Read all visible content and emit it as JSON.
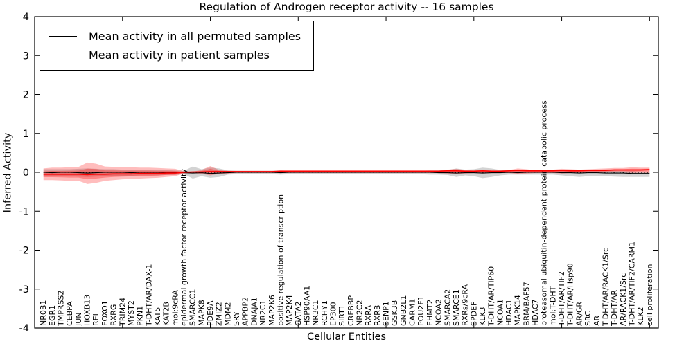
{
  "chart_data": {
    "type": "line",
    "title": "Regulation of Androgen receptor activity -- 16 samples",
    "xlabel": "Cellular Entities",
    "ylabel": "Inferred Activity",
    "ylim": [
      -4,
      4
    ],
    "yticks": [
      4,
      3,
      2,
      1,
      0,
      -1,
      -2,
      -3,
      -4
    ],
    "xtick_values": [
      10,
      20,
      30,
      40,
      50,
      60,
      70
    ],
    "grid": false,
    "legend_position": "upper left",
    "zero_line": {
      "style": "dotted",
      "color": "#000000",
      "y": 0
    },
    "legend": {
      "entries": [
        {
          "label": "Mean activity in all permuted samples",
          "color": "#000000"
        },
        {
          "label": "Mean activity in patient samples",
          "color": "#ff0000"
        }
      ]
    },
    "categories": [
      "NR0B1",
      "EGR1",
      "TMPRSS2",
      "CEBPA",
      "JUN",
      "HOXB13",
      "REL",
      "FOXO1",
      "RXRG",
      "TRIM24",
      "MYST2",
      "PKN1",
      "T-DHT/AR/DAX-1",
      "KAT5",
      "KAT2B",
      "mol:9cRA",
      "epidermal growth factor receptor activity",
      "SMARCC1",
      "MAPK8",
      "PDE9A",
      "ZMIZ2",
      "MDM2",
      "SRY",
      "APPBP2",
      "DNAJA1",
      "NR2C1",
      "MAP2K6",
      "positive regulation of transcription",
      "MAP2K4",
      "GATA2",
      "HSP90AA1",
      "NR3C1",
      "RCHY1",
      "EP300",
      "SIRT1",
      "CREBBP",
      "NR2C2",
      "RXRA",
      "RXRB",
      "SENP1",
      "GSK3B",
      "GNB2L1",
      "CARM1",
      "POU2F1",
      "EHMT2",
      "NCOA2",
      "SMARCA2",
      "SMARCE1",
      "RXRs/9cRA",
      "SPDEF",
      "KLK3",
      "T-DHT/AR/TIP60",
      "NCOA1",
      "HDAC1",
      "MAPK14",
      "BRM/BAF57",
      "HDAC7",
      "proteasomal ubiquitin-dependent protein catabolic process",
      "mol:T-DHT",
      "T-DHT/AR/TIF2",
      "T-DHT/AR/Hsp90",
      "AR/GR",
      "SRC",
      "AR",
      "T-DHT/AR/RACK1/Src",
      "T-DHT/AR",
      "AR/RACK1/Src",
      "T-DHT/AR/TIF2/CARM1",
      "KLK2",
      "cell proliferation"
    ],
    "series": [
      {
        "name": "Mean activity in all permuted samples",
        "color": "#000000",
        "style": "solid",
        "width": 1.1,
        "values": [
          0,
          -0.01,
          0,
          0,
          -0.01,
          -0.02,
          -0.01,
          0,
          0,
          0,
          -0.01,
          0,
          0,
          0,
          0,
          0,
          -0.01,
          -0.02,
          -0.01,
          -0.03,
          -0.02,
          -0.01,
          0,
          0,
          0,
          0,
          0,
          -0.01,
          0,
          0,
          0,
          0,
          0,
          0,
          0,
          0,
          0,
          0,
          0,
          0,
          0,
          0,
          0,
          0,
          0,
          -0.01,
          -0.01,
          -0.02,
          -0.01,
          -0.01,
          -0.02,
          -0.01,
          -0.01,
          0,
          -0.01,
          0,
          0,
          0,
          0,
          -0.01,
          -0.01,
          -0.02,
          -0.01,
          -0.01,
          -0.02,
          -0.02,
          -0.02,
          -0.03,
          -0.03,
          -0.03
        ]
      },
      {
        "name": "Mean activity in patient samples",
        "color": "#ff0000",
        "style": "solid",
        "width": 1.6,
        "values": [
          -0.05,
          -0.05,
          -0.05,
          -0.05,
          -0.05,
          -0.06,
          -0.05,
          -0.05,
          -0.04,
          -0.04,
          -0.04,
          -0.03,
          -0.03,
          -0.03,
          -0.02,
          -0.02,
          0,
          0.01,
          0.01,
          0.02,
          0.02,
          0.02,
          0.02,
          0.02,
          0.02,
          0.02,
          0.02,
          0.03,
          0.03,
          0.03,
          0.03,
          0.03,
          0.03,
          0.03,
          0.03,
          0.03,
          0.03,
          0.03,
          0.03,
          0.03,
          0.03,
          0.03,
          0.03,
          0.03,
          0.03,
          0.03,
          0.04,
          0.04,
          0.03,
          0.03,
          0.04,
          0.03,
          0.03,
          0.04,
          0.05,
          0.04,
          0.04,
          0.04,
          0.04,
          0.05,
          0.04,
          0.04,
          0.05,
          0.05,
          0.05,
          0.06,
          0.06,
          0.06,
          0.06,
          0.07
        ]
      }
    ],
    "bands": [
      {
        "name": "permuted samples range",
        "color": "#808080",
        "opacity": 0.35,
        "upper": [
          0.08,
          0.08,
          0.08,
          0.08,
          0.09,
          0.1,
          0.09,
          0.08,
          0.08,
          0.07,
          0.07,
          0.07,
          0.06,
          0.06,
          0.06,
          0.05,
          0.04,
          0.15,
          0.08,
          0.12,
          0.1,
          0.05,
          0.04,
          0.04,
          0.04,
          0.04,
          0.04,
          0.05,
          0.04,
          0.04,
          0.04,
          0.04,
          0.04,
          0.04,
          0.04,
          0.04,
          0.04,
          0.04,
          0.04,
          0.04,
          0.04,
          0.04,
          0.04,
          0.04,
          0.05,
          0.05,
          0.06,
          0.1,
          0.07,
          0.08,
          0.12,
          0.1,
          0.06,
          0.05,
          0.06,
          0.05,
          0.05,
          0.05,
          0.05,
          0.06,
          0.07,
          0.06,
          0.05,
          0.05,
          0.04,
          0.04,
          0.03,
          0.03,
          0.02,
          0.02
        ],
        "lower": [
          -0.1,
          -0.1,
          -0.1,
          -0.1,
          -0.11,
          -0.12,
          -0.11,
          -0.1,
          -0.1,
          -0.09,
          -0.09,
          -0.08,
          -0.08,
          -0.08,
          -0.07,
          -0.07,
          -0.05,
          -0.16,
          -0.1,
          -0.14,
          -0.12,
          -0.06,
          -0.05,
          -0.05,
          -0.05,
          -0.05,
          -0.05,
          -0.06,
          -0.05,
          -0.05,
          -0.05,
          -0.05,
          -0.05,
          -0.05,
          -0.05,
          -0.05,
          -0.05,
          -0.05,
          -0.05,
          -0.05,
          -0.05,
          -0.05,
          -0.05,
          -0.05,
          -0.06,
          -0.06,
          -0.07,
          -0.12,
          -0.08,
          -0.1,
          -0.15,
          -0.12,
          -0.08,
          -0.06,
          -0.06,
          -0.06,
          -0.06,
          -0.06,
          -0.06,
          -0.08,
          -0.1,
          -0.12,
          -0.1,
          -0.09,
          -0.1,
          -0.11,
          -0.12,
          -0.12,
          -0.12,
          -0.12
        ]
      },
      {
        "name": "patient samples range",
        "color": "#ff0000",
        "opacity": 0.26,
        "inner_scale": 0.5,
        "inner_opacity": 0.3,
        "mean_series": 1,
        "upper": [
          0.1,
          0.12,
          0.12,
          0.13,
          0.14,
          0.25,
          0.22,
          0.15,
          0.14,
          0.13,
          0.13,
          0.12,
          0.12,
          0.11,
          0.1,
          0.09,
          0.03,
          0.02,
          0.06,
          0.16,
          0.06,
          0.04,
          0.04,
          0.04,
          0.04,
          0.04,
          0.04,
          0.05,
          0.05,
          0.05,
          0.05,
          0.05,
          0.05,
          0.05,
          0.05,
          0.05,
          0.05,
          0.05,
          0.05,
          0.05,
          0.05,
          0.05,
          0.05,
          0.05,
          0.05,
          0.05,
          0.07,
          0.09,
          0.06,
          0.05,
          0.06,
          0.05,
          0.05,
          0.06,
          0.1,
          0.08,
          0.05,
          0.06,
          0.07,
          0.09,
          0.08,
          0.07,
          0.08,
          0.09,
          0.1,
          0.11,
          0.11,
          0.13,
          0.12,
          0.12
        ],
        "lower": [
          -0.2,
          -0.2,
          -0.21,
          -0.22,
          -0.22,
          -0.3,
          -0.27,
          -0.22,
          -0.2,
          -0.18,
          -0.17,
          -0.16,
          -0.15,
          -0.14,
          -0.12,
          -0.1,
          -0.03,
          -0.02,
          -0.04,
          -0.08,
          -0.04,
          -0.03,
          -0.02,
          -0.02,
          -0.02,
          -0.02,
          -0.02,
          -0.02,
          -0.02,
          -0.02,
          -0.02,
          -0.02,
          -0.02,
          -0.02,
          -0.02,
          -0.02,
          -0.02,
          -0.02,
          -0.02,
          -0.02,
          -0.02,
          -0.02,
          -0.02,
          -0.02,
          -0.02,
          -0.02,
          -0.03,
          -0.04,
          -0.03,
          -0.02,
          -0.03,
          -0.02,
          -0.02,
          -0.02,
          -0.04,
          -0.03,
          -0.02,
          -0.02,
          -0.02,
          -0.03,
          -0.02,
          -0.02,
          -0.01,
          -0.01,
          0.0,
          0.0,
          0.0,
          -0.02,
          -0.01,
          -0.02
        ]
      }
    ]
  }
}
